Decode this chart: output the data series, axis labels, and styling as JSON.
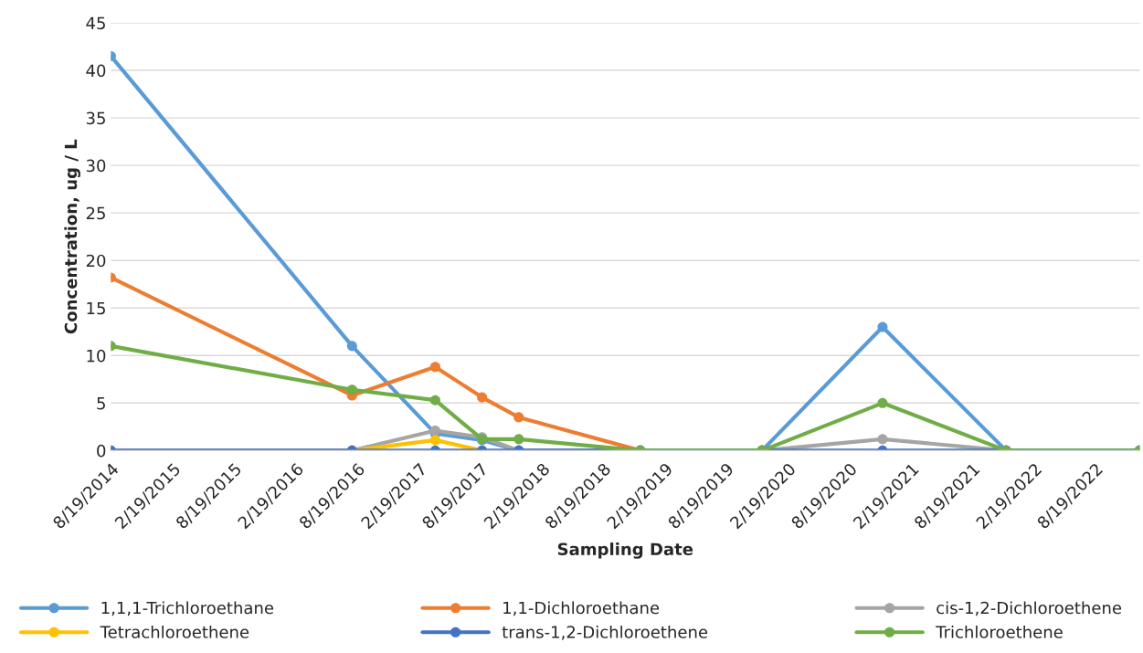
{
  "chart_data": {
    "type": "line",
    "xlabel": "Sampling Date",
    "ylabel": "Concentration, ug / L",
    "x": [
      "2014-08-19",
      "2016-08-04",
      "2017-04-08",
      "2017-08-25",
      "2017-12-12",
      "2018-12-08",
      "2019-12-04",
      "2020-11-26",
      "2021-11-28",
      "2022-12-29"
    ],
    "series": [
      {
        "name": "1,1,1-Trichloroethane",
        "color": "#5b9bd5",
        "values": [
          41.5,
          11,
          1.8,
          1.1,
          0,
          0,
          0,
          13,
          0,
          0
        ]
      },
      {
        "name": "1,1-Dichloroethane",
        "color": "#ed7d31",
        "values": [
          18.2,
          5.8,
          8.8,
          5.6,
          3.5,
          0,
          0,
          null,
          null,
          null
        ]
      },
      {
        "name": "cis-1,2-Dichloroethene",
        "color": "#a5a5a5",
        "values": [
          0,
          0,
          2.1,
          1.4,
          0,
          0,
          0,
          1.2,
          0,
          0
        ]
      },
      {
        "name": "Tetrachloroethene",
        "color": "#ffc000",
        "values": [
          null,
          0,
          1.1,
          0,
          null,
          null,
          null,
          null,
          null,
          null
        ]
      },
      {
        "name": "trans-1,2-Dichloroethene",
        "color": "#4472c4",
        "values": [
          0,
          0,
          0,
          0,
          0,
          0,
          0,
          0,
          0,
          0
        ]
      },
      {
        "name": "Trichloroethene",
        "color": "#70ad47",
        "values": [
          11,
          6.4,
          5.3,
          1.2,
          1.2,
          0,
          0,
          5.0,
          0,
          0
        ]
      }
    ],
    "xlim": [
      "2014-08-19",
      "2022-12-29"
    ],
    "xticks": [
      {
        "value": "2014-08-19",
        "label": "8/19/2014"
      },
      {
        "value": "2015-02-19",
        "label": "2/19/2015"
      },
      {
        "value": "2015-08-19",
        "label": "8/19/2015"
      },
      {
        "value": "2016-02-19",
        "label": "2/19/2016"
      },
      {
        "value": "2016-08-19",
        "label": "8/19/2016"
      },
      {
        "value": "2017-02-19",
        "label": "2/19/2017"
      },
      {
        "value": "2017-08-19",
        "label": "8/19/2017"
      },
      {
        "value": "2018-02-19",
        "label": "2/19/2018"
      },
      {
        "value": "2018-08-19",
        "label": "8/19/2018"
      },
      {
        "value": "2019-02-19",
        "label": "2/19/2019"
      },
      {
        "value": "2019-08-19",
        "label": "8/19/2019"
      },
      {
        "value": "2020-02-19",
        "label": "2/19/2020"
      },
      {
        "value": "2020-08-19",
        "label": "8/19/2020"
      },
      {
        "value": "2021-02-19",
        "label": "2/19/2021"
      },
      {
        "value": "2021-08-19",
        "label": "8/19/2021"
      },
      {
        "value": "2022-02-19",
        "label": "2/19/2022"
      },
      {
        "value": "2022-08-19",
        "label": "8/19/2022"
      }
    ],
    "ylim": [
      0,
      45
    ],
    "yticks": [
      0,
      5,
      10,
      15,
      20,
      25,
      30,
      35,
      40,
      45
    ],
    "grid": "y",
    "legend": "bottom",
    "marker": "circle",
    "line_style": "solid"
  }
}
